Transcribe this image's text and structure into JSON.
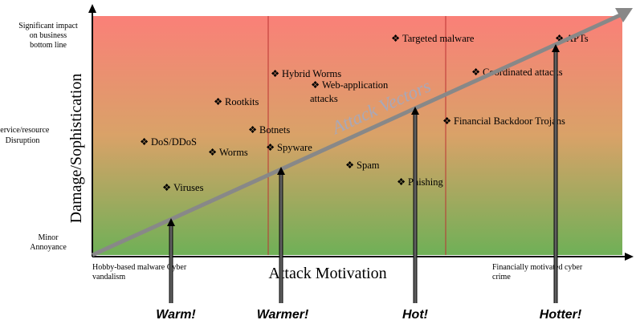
{
  "y_axis": {
    "title": "Damage/Sophistication",
    "labels": [
      [
        "Significant impact",
        "on business",
        "bottom line"
      ],
      [
        "Service/resource",
        "Disruption"
      ],
      [
        "Minor",
        "Annoyance"
      ]
    ]
  },
  "x_axis": {
    "title": "Attack Motivation",
    "labels": [
      [
        "Hobby-based malware Cyber",
        "vandalism"
      ],
      [
        "Financially motivated cyber",
        "crime"
      ]
    ]
  },
  "overlay": "Attack Vectors",
  "items": [
    [
      "Targeted malware"
    ],
    [
      "APTs"
    ],
    [
      "Hybrid Worms"
    ],
    [
      "Web-application",
      "attacks"
    ],
    [
      "Coordinated attacks"
    ],
    [
      "Rootkits"
    ],
    [
      "Botnets"
    ],
    [
      "Financial Backdoor Trojans"
    ],
    [
      "DoS/DDoS"
    ],
    [
      "Spyware"
    ],
    [
      "Worms"
    ],
    [
      "Spam"
    ],
    [
      "Viruses"
    ],
    [
      "Phishing"
    ]
  ],
  "stages": [
    "Warm!",
    "Warmer!",
    "Hot!",
    "Hotter!"
  ]
}
